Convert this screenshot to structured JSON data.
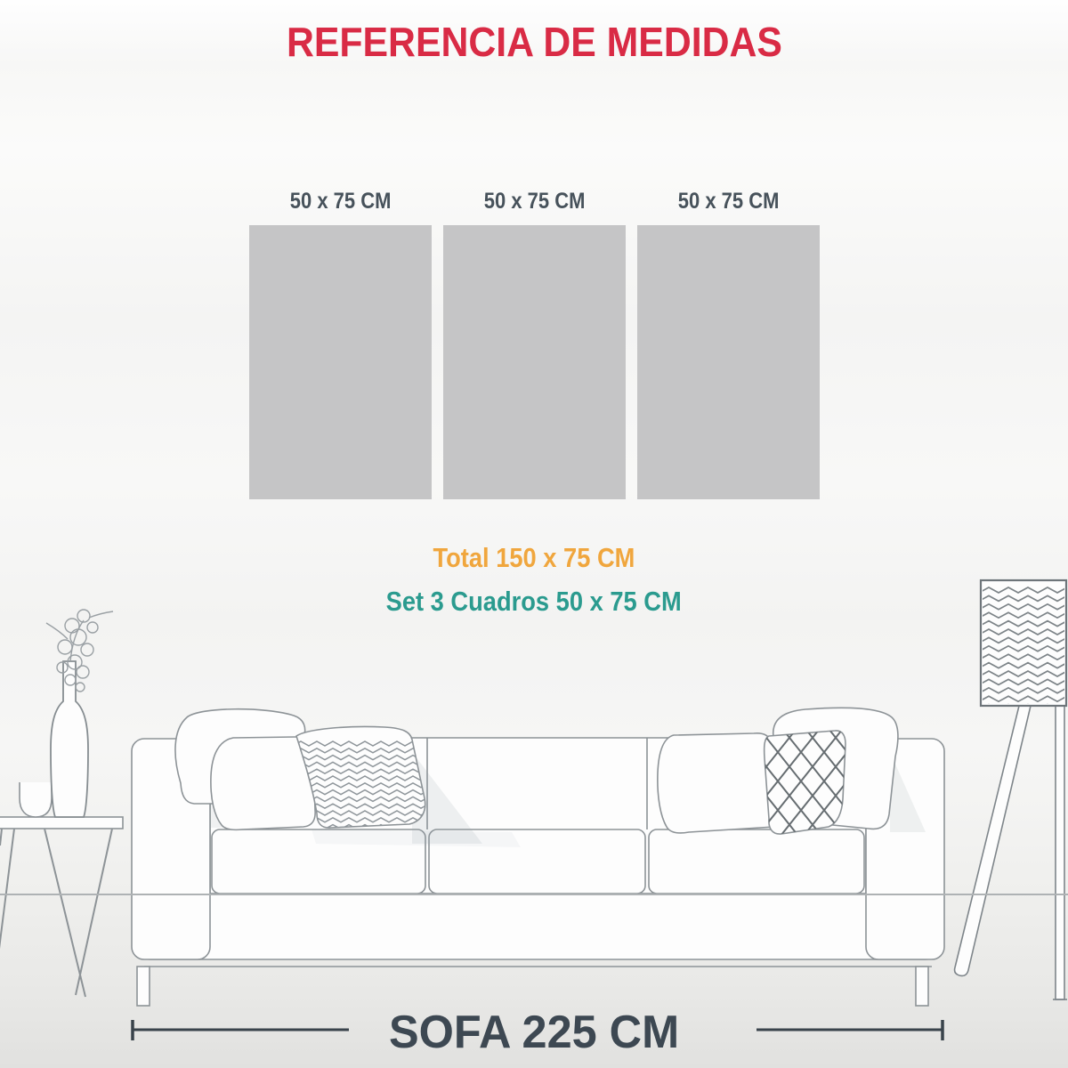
{
  "title": {
    "text": "REFERENCIA DE MEDIDAS",
    "color": "#d92b45"
  },
  "frames": {
    "items": [
      {
        "label": "50 x 75 CM"
      },
      {
        "label": "50 x 75 CM"
      },
      {
        "label": "50 x 75 CM"
      }
    ],
    "canvas_color": "#c5c5c6",
    "label_color": "#47525b"
  },
  "summary": {
    "total_label": "Total 150 x 75 CM",
    "total_color": "#f0a63d",
    "set_label": "Set 3 Cuadros 50 x 75 CM",
    "set_color": "#2b9b8f"
  },
  "sofa_measurement": {
    "label": "SOFA 225 CM",
    "color": "#3d4852"
  },
  "scene": {
    "items": [
      "side-table-with-vase-illustration",
      "three-seat-sofa-illustration",
      "floor-lamp-illustration"
    ]
  }
}
